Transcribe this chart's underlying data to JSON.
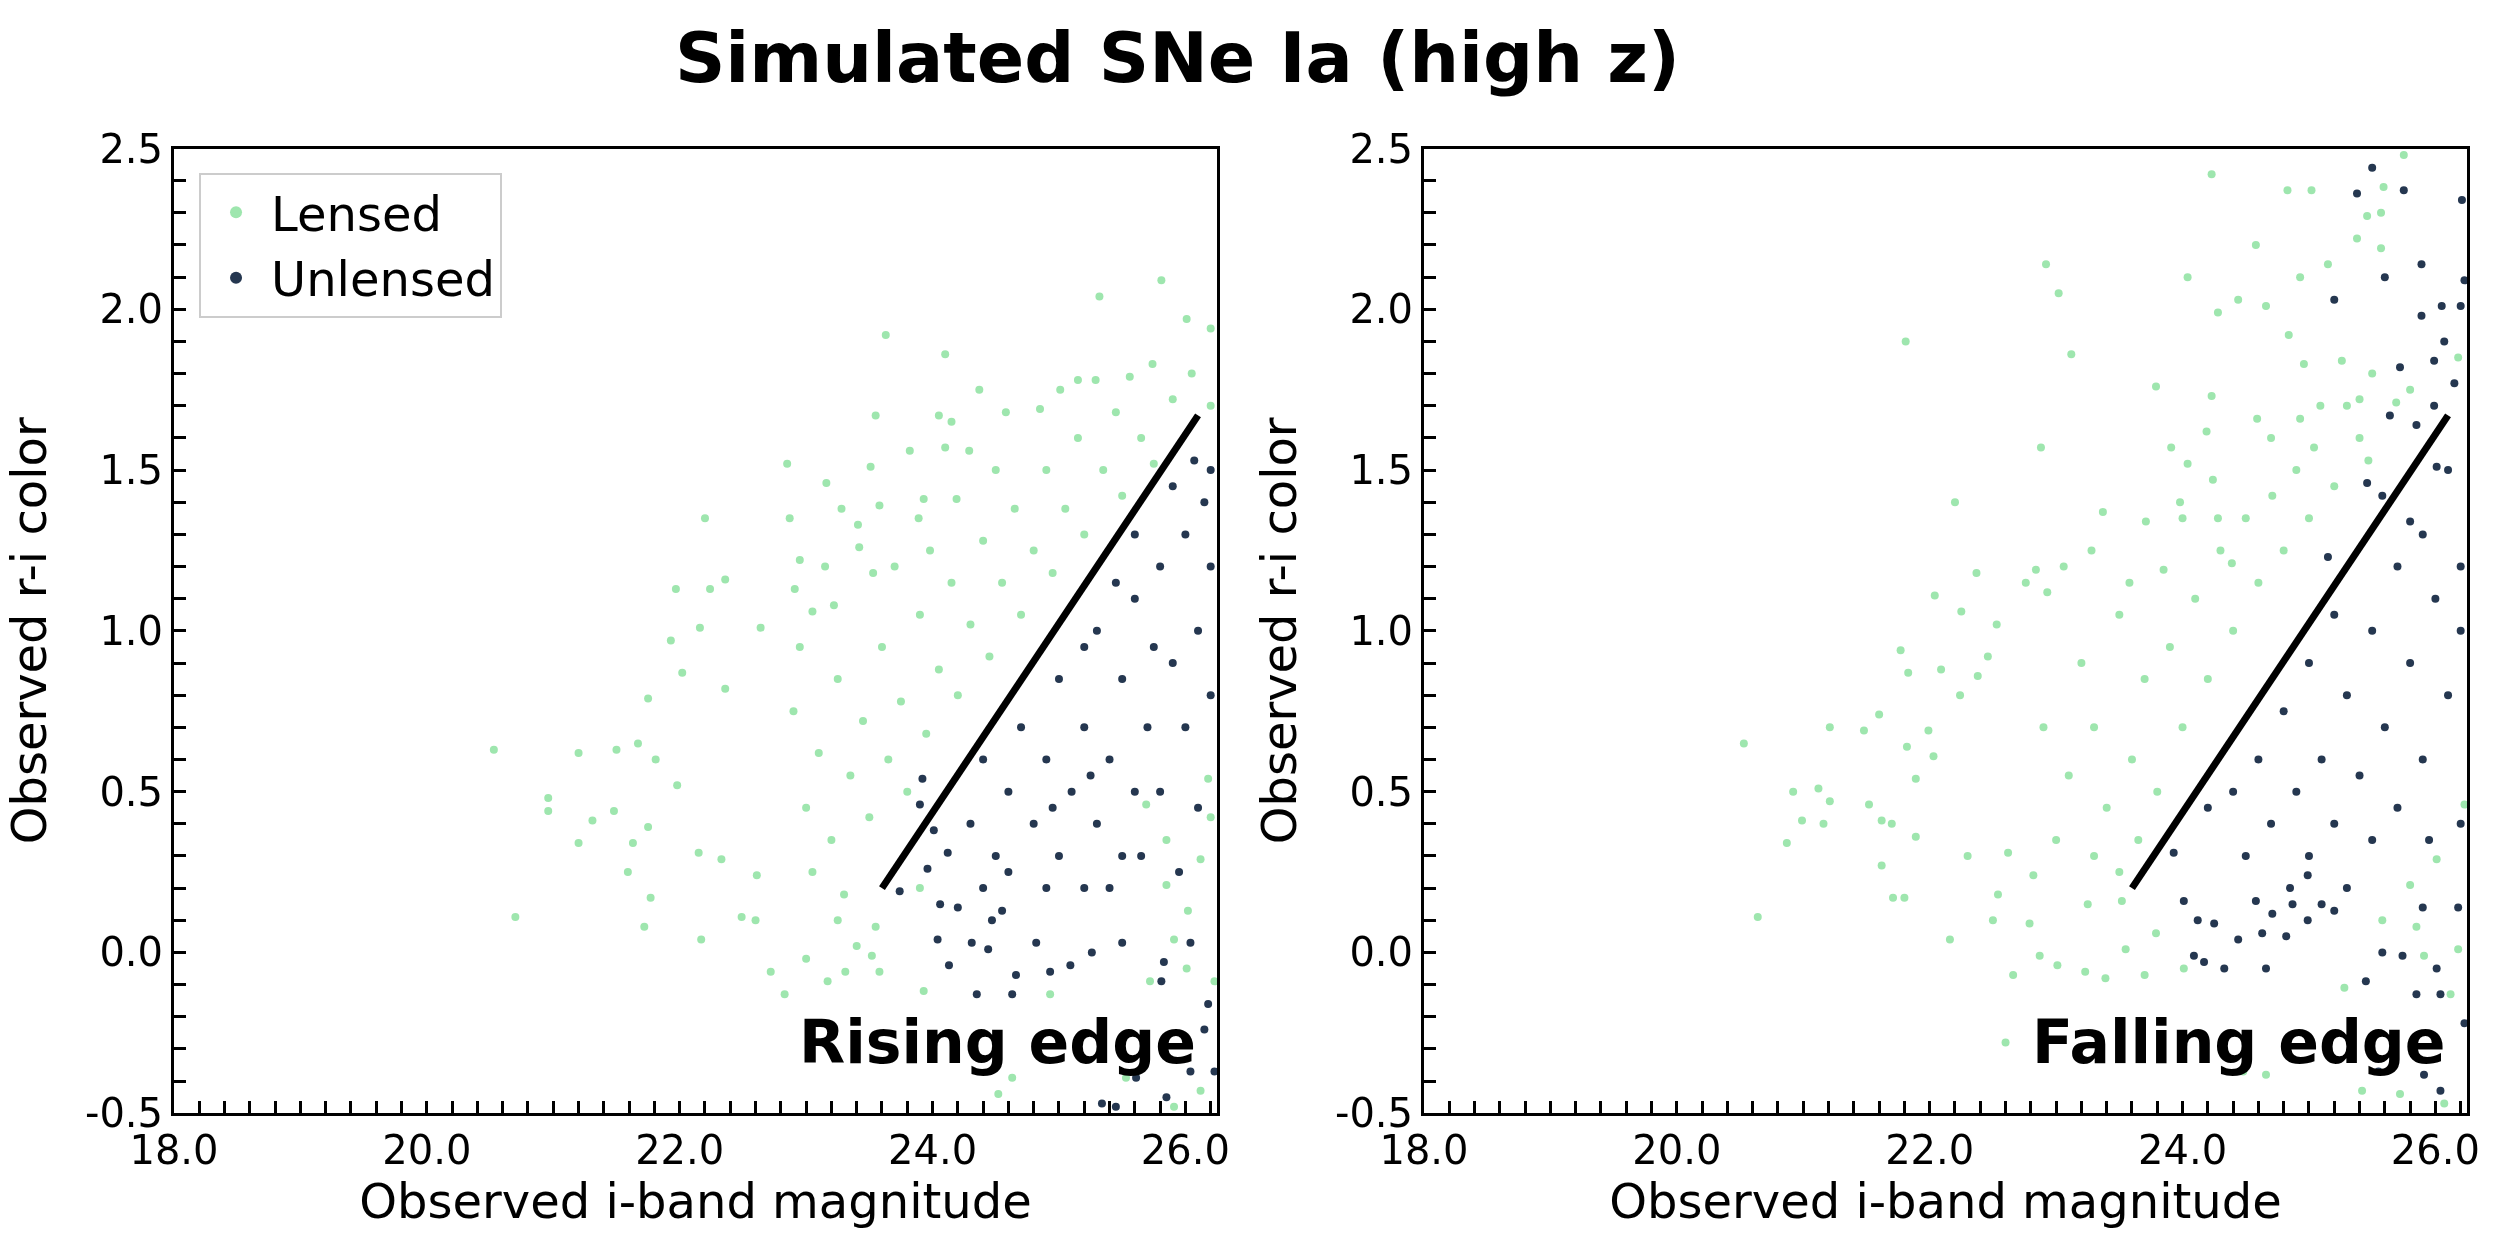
{
  "chart_data": [
    {
      "type": "scatter",
      "title": "Simulated SNe Ia (high z)",
      "xlabel": "Observed i-band magnitude",
      "ylabel": "Observed r-i color",
      "xlim": [
        18,
        26.25
      ],
      "ylim": [
        -0.5,
        2.5
      ],
      "xticks": [
        {
          "value": 18,
          "label": "18.0"
        },
        {
          "value": 20,
          "label": "20.0"
        },
        {
          "value": 22,
          "label": "22.0"
        },
        {
          "value": 24,
          "label": "24.0"
        },
        {
          "value": 26,
          "label": "26.0"
        },
        {
          "value": 18.2,
          "label": null
        },
        {
          "value": 18.4,
          "label": null
        },
        {
          "value": 18.6,
          "label": null
        },
        {
          "value": 18.8,
          "label": null
        },
        {
          "value": 19,
          "label": null
        },
        {
          "value": 19.2,
          "label": null
        },
        {
          "value": 19.4,
          "label": null
        },
        {
          "value": 19.6,
          "label": null
        },
        {
          "value": 19.8,
          "label": null
        },
        {
          "value": 20.2,
          "label": null
        },
        {
          "value": 20.4,
          "label": null
        },
        {
          "value": 20.6,
          "label": null
        },
        {
          "value": 20.8,
          "label": null
        },
        {
          "value": 21,
          "label": null
        },
        {
          "value": 21.2,
          "label": null
        },
        {
          "value": 21.4,
          "label": null
        },
        {
          "value": 21.6,
          "label": null
        },
        {
          "value": 21.8,
          "label": null
        },
        {
          "value": 22.2,
          "label": null
        },
        {
          "value": 22.4,
          "label": null
        },
        {
          "value": 22.6,
          "label": null
        },
        {
          "value": 22.8,
          "label": null
        },
        {
          "value": 23,
          "label": null
        },
        {
          "value": 23.2,
          "label": null
        },
        {
          "value": 23.4,
          "label": null
        },
        {
          "value": 23.6,
          "label": null
        },
        {
          "value": 23.8,
          "label": null
        },
        {
          "value": 24.2,
          "label": null
        },
        {
          "value": 24.4,
          "label": null
        },
        {
          "value": 24.6,
          "label": null
        },
        {
          "value": 24.8,
          "label": null
        },
        {
          "value": 25,
          "label": null
        },
        {
          "value": 25.2,
          "label": null
        },
        {
          "value": 25.4,
          "label": null
        },
        {
          "value": 25.6,
          "label": null
        },
        {
          "value": 25.8,
          "label": null
        },
        {
          "value": 26.2,
          "label": null
        }
      ],
      "yticks": [
        -0.5,
        {
          "value": 0,
          "label": "0.0"
        },
        0.5,
        {
          "value": 1,
          "label": "1.0"
        },
        1.5,
        {
          "value": 2,
          "label": "2.0"
        },
        2.5,
        {
          "value": -0.4,
          "label": null
        },
        {
          "value": -0.3,
          "label": null
        },
        {
          "value": -0.2,
          "label": null
        },
        {
          "value": -0.1,
          "label": null
        },
        {
          "value": 0.1,
          "label": null
        },
        {
          "value": 0.2,
          "label": null
        },
        {
          "value": 0.3,
          "label": null
        },
        {
          "value": 0.4,
          "label": null
        },
        {
          "value": 0.6,
          "label": null
        },
        {
          "value": 0.7,
          "label": null
        },
        {
          "value": 0.8,
          "label": null
        },
        {
          "value": 0.9,
          "label": null
        },
        {
          "value": 1.1,
          "label": null
        },
        {
          "value": 1.2,
          "label": null
        },
        {
          "value": 1.3,
          "label": null
        },
        {
          "value": 1.4,
          "label": null
        },
        {
          "value": 1.6,
          "label": null
        },
        {
          "value": 1.7,
          "label": null
        },
        {
          "value": 1.8,
          "label": null
        },
        {
          "value": 1.9,
          "label": null
        },
        {
          "value": 2.1,
          "label": null
        },
        {
          "value": 2.2,
          "label": null
        },
        {
          "value": 2.3,
          "label": null
        },
        {
          "value": 2.4,
          "label": null
        }
      ],
      "grid": false,
      "legend": "top left",
      "annotations": [
        "Rising edge"
      ],
      "series": [
        {
          "name": "Lensed",
          "color": "#9ee6ae",
          "marker": "circle",
          "x": [
            20.53,
            20.7,
            20.96,
            20.96,
            21.2,
            21.2,
            21.31,
            21.48,
            21.5,
            21.67,
            21.63,
            21.59,
            21.77,
            21.72,
            21.75,
            21.75,
            21.81,
            21.93,
            22.02,
            22.16,
            22.17,
            22.36,
            21.98,
            22.15,
            22.33,
            22.49,
            22.6,
            22.83,
            22.72,
            22.61,
            25.81,
            25.32,
            23.63,
            24.1,
            24.37,
            23.55,
            24.05,
            24.15,
            23.82,
            24.29,
            24.1,
            24.58,
            24.85,
            25.01,
            25.15,
            25.29,
            25.56,
            25.74,
            26.01,
            26.2,
            22.85,
            23.16,
            23.51,
            24.19,
            23.93,
            22.2,
            22.87,
            23.28,
            23.41,
            23.58,
            23.89,
            22.95,
            23.42,
            23.98,
            22.36,
            22.24,
            21.97,
            22.91,
            23.53,
            23.05,
            23.22,
            22.64,
            22.9,
            23.0,
            23.1,
            23.2,
            23.25,
            23.35,
            23.45,
            23.5,
            23.6,
            23.65,
            23.75,
            23.8,
            23.9,
            23.95,
            24.05,
            24.15,
            24.2,
            24.3,
            24.4,
            24.45,
            24.55,
            24.65,
            24.7,
            24.8,
            24.9,
            24.95,
            25.05,
            25.15,
            25.2,
            25.35,
            25.45,
            25.5,
            25.65,
            25.75,
            25.9,
            26.05,
            26.2,
            23.05,
            23.3,
            23.55,
            23.4,
            23.9,
            22.95,
            23.15,
            23.7,
            24.5,
            23.0,
            23.25,
            25.85,
            26.02,
            26.12,
            26.2,
            25.91,
            26.23,
            26.01,
            25.72,
            26.18,
            25.69,
            25.85,
            24.52,
            24.63,
            24.93,
            23.93,
            23.58,
            23.52,
            23.17,
            23.31,
            25.53,
            26.12,
            25.91
          ],
          "values": [
            0.63,
            0.11,
            0.48,
            0.44,
            0.62,
            0.34,
            0.41,
            0.44,
            0.63,
            0.65,
            0.34,
            0.25,
            0.17,
            0.08,
            0.39,
            0.79,
            0.6,
            0.97,
            0.87,
            1.01,
            0.04,
            0.82,
            0.52,
            0.31,
            0.29,
            0.11,
            0.1,
            -0.13,
            -0.06,
            0.24,
            2.09,
            2.04,
            1.92,
            1.86,
            1.75,
            1.67,
            1.67,
            1.65,
            1.56,
            1.56,
            1.57,
            1.68,
            1.69,
            1.75,
            1.78,
            1.78,
            1.79,
            1.83,
            1.97,
            1.94,
            1.52,
            1.46,
            1.51,
            1.41,
            1.41,
            1.35,
            1.35,
            1.38,
            1.33,
            1.39,
            1.35,
            1.22,
            1.26,
            1.25,
            1.16,
            1.13,
            1.13,
            1.13,
            1.18,
            1.06,
            1.08,
            1.01,
            0.75,
            0.45,
            0.62,
            0.35,
            0.85,
            0.55,
            0.72,
            0.42,
            0.95,
            0.6,
            0.78,
            0.5,
            1.05,
            0.68,
            0.88,
            1.15,
            0.8,
            1.02,
            1.28,
            0.92,
            1.15,
            1.38,
            1.05,
            1.25,
            1.5,
            1.18,
            1.38,
            1.6,
            1.3,
            1.5,
            1.68,
            1.42,
            1.6,
            1.52,
            1.72,
            1.8,
            1.7,
            0.25,
            0.18,
            0.08,
            0.02,
            0.2,
            0.95,
            1.2,
            1.2,
            1.5,
            -0.02,
            0.1,
            0.21,
            0.13,
            0.29,
            0.42,
            0.04,
            -0.09,
            -0.05,
            -0.09,
            0.54,
            0.46,
            0.35,
            -0.44,
            -0.39,
            -0.13,
            -0.12,
            -0.06,
            -0.01,
            -0.09,
            -0.06,
            -0.39,
            -0.43,
            -0.48
          ]
        },
        {
          "name": "Unlensed",
          "color": "#253750",
          "marker": "circle",
          "x": [
            24.3,
            24.4,
            24.5,
            24.6,
            24.7,
            24.8,
            24.9,
            25.0,
            25.0,
            25.1,
            25.2,
            25.3,
            25.3,
            25.4,
            25.5,
            25.5,
            25.6,
            25.7,
            25.8,
            25.8,
            25.9,
            26.0,
            26.1,
            26.15,
            26.0,
            25.6,
            25.9,
            24.9,
            25.2,
            24.6,
            25.45,
            25.2,
            24.95,
            25.25,
            25.6,
            25.75,
            26.2,
            26.2,
            26.2,
            24.4,
            25.4,
            25.65,
            26.1,
            25.95,
            26.07,
            23.92,
            23.9,
            24.01,
            24.12,
            23.96,
            23.74,
            24.06,
            24.2,
            24.47,
            24.55,
            24.04,
            24.13,
            24.31,
            24.44,
            24.63,
            24.35,
            24.66,
            24.93,
            25.09,
            24.82,
            25.26,
            25.5,
            26.04,
            25.81,
            26.15,
            26.18,
            25.34,
            25.45,
            25.61,
            25.85,
            26.04,
            26.23,
            25.83
          ],
          "values": [
            0.4,
            0.6,
            0.3,
            0.5,
            0.7,
            0.4,
            0.6,
            0.3,
            0.85,
            0.5,
            0.7,
            0.4,
            1.0,
            0.6,
            0.85,
            0.3,
            1.1,
            0.7,
            1.2,
            0.5,
            0.9,
            1.3,
            1.0,
            1.4,
            0.7,
            1.3,
            1.45,
            0.2,
            0.2,
            0.25,
            1.15,
            0.95,
            0.45,
            0.55,
            0.5,
            0.95,
            0.8,
            1.2,
            1.5,
            0.2,
            0.2,
            0.3,
            0.45,
            0.25,
            1.53,
            0.54,
            0.46,
            0.38,
            0.31,
            0.26,
            0.19,
            0.15,
            0.14,
            0.1,
            0.13,
            0.04,
            -0.04,
            0.03,
            0.01,
            -0.13,
            -0.13,
            -0.07,
            -0.06,
            -0.04,
            0.03,
            0.0,
            0.03,
            0.03,
            -0.09,
            -0.24,
            -0.16,
            -0.47,
            -0.48,
            -0.39,
            -0.45,
            -0.37,
            -0.37,
            -0.03
          ]
        },
        {
          "type": "line",
          "color": "#000000",
          "x": [
            23.6,
            26.1
          ],
          "values": [
            0.2,
            1.67
          ]
        }
      ]
    },
    {
      "type": "scatter",
      "xlabel": "Observed i-band magnitude",
      "ylabel": "Observed r-i color",
      "xlim": [
        18,
        26.25
      ],
      "ylim": [
        -0.5,
        2.5
      ],
      "xticks": [
        {
          "value": 18,
          "label": "18.0"
        },
        {
          "value": 20,
          "label": "20.0"
        },
        {
          "value": 22,
          "label": "22.0"
        },
        {
          "value": 24,
          "label": "24.0"
        },
        {
          "value": 26,
          "label": "26.0"
        },
        {
          "value": 18.2,
          "label": null
        },
        {
          "value": 18.4,
          "label": null
        },
        {
          "value": 18.6,
          "label": null
        },
        {
          "value": 18.8,
          "label": null
        },
        {
          "value": 19,
          "label": null
        },
        {
          "value": 19.2,
          "label": null
        },
        {
          "value": 19.4,
          "label": null
        },
        {
          "value": 19.6,
          "label": null
        },
        {
          "value": 19.8,
          "label": null
        },
        {
          "value": 20.2,
          "label": null
        },
        {
          "value": 20.4,
          "label": null
        },
        {
          "value": 20.6,
          "label": null
        },
        {
          "value": 20.8,
          "label": null
        },
        {
          "value": 21,
          "label": null
        },
        {
          "value": 21.2,
          "label": null
        },
        {
          "value": 21.4,
          "label": null
        },
        {
          "value": 21.6,
          "label": null
        },
        {
          "value": 21.8,
          "label": null
        },
        {
          "value": 22.2,
          "label": null
        },
        {
          "value": 22.4,
          "label": null
        },
        {
          "value": 22.6,
          "label": null
        },
        {
          "value": 22.8,
          "label": null
        },
        {
          "value": 23,
          "label": null
        },
        {
          "value": 23.2,
          "label": null
        },
        {
          "value": 23.4,
          "label": null
        },
        {
          "value": 23.6,
          "label": null
        },
        {
          "value": 23.8,
          "label": null
        },
        {
          "value": 24.2,
          "label": null
        },
        {
          "value": 24.4,
          "label": null
        },
        {
          "value": 24.6,
          "label": null
        },
        {
          "value": 24.8,
          "label": null
        },
        {
          "value": 25,
          "label": null
        },
        {
          "value": 25.2,
          "label": null
        },
        {
          "value": 25.4,
          "label": null
        },
        {
          "value": 25.6,
          "label": null
        },
        {
          "value": 25.8,
          "label": null
        },
        {
          "value": 26.2,
          "label": null
        }
      ],
      "yticks": [
        -0.5,
        {
          "value": 0,
          "label": "0.0"
        },
        0.5,
        {
          "value": 1,
          "label": "1.0"
        },
        1.5,
        {
          "value": 2,
          "label": "2.0"
        },
        2.5,
        {
          "value": -0.4,
          "label": null
        },
        {
          "value": -0.3,
          "label": null
        },
        {
          "value": -0.2,
          "label": null
        },
        {
          "value": -0.1,
          "label": null
        },
        {
          "value": 0.1,
          "label": null
        },
        {
          "value": 0.2,
          "label": null
        },
        {
          "value": 0.3,
          "label": null
        },
        {
          "value": 0.4,
          "label": null
        },
        {
          "value": 0.6,
          "label": null
        },
        {
          "value": 0.7,
          "label": null
        },
        {
          "value": 0.8,
          "label": null
        },
        {
          "value": 0.9,
          "label": null
        },
        {
          "value": 1.1,
          "label": null
        },
        {
          "value": 1.2,
          "label": null
        },
        {
          "value": 1.3,
          "label": null
        },
        {
          "value": 1.4,
          "label": null
        },
        {
          "value": 1.6,
          "label": null
        },
        {
          "value": 1.7,
          "label": null
        },
        {
          "value": 1.8,
          "label": null
        },
        {
          "value": 1.9,
          "label": null
        },
        {
          "value": 2.1,
          "label": null
        },
        {
          "value": 2.2,
          "label": null
        },
        {
          "value": 2.3,
          "label": null
        },
        {
          "value": 2.4,
          "label": null
        }
      ],
      "grid": false,
      "annotations": [
        "Falling edge"
      ],
      "series": [
        {
          "color": "#9ee6ae",
          "marker": "circle",
          "x": [
            25.75,
            24.23,
            24.83,
            25.02,
            25.59,
            25.57,
            25.46,
            24.58,
            25.38,
            25.15,
            25.57,
            22.92,
            23.02,
            21.81,
            23.12,
            24.04,
            24.44,
            24.28,
            24.66,
            24.93,
            24.84,
            23.79,
            24.23,
            24.19,
            22.88,
            23.91,
            24.04,
            24.24,
            24.59,
            24.93,
            25.09,
            25.4,
            24.96,
            25.26,
            25.69,
            26.18,
            22.2,
            23.37,
            23.71,
            23.98,
            24.28,
            23.28,
            23.06,
            22.84,
            22.37,
            22.76,
            22.04,
            22.25,
            22.53,
            22.93,
            23.58,
            23.85,
            24.39,
            24.71,
            25.04,
            25.47,
            20.53,
            20.64,
            20.87,
            20.92,
            20.99,
            21.12,
            21.16,
            21.21,
            21.21,
            21.48,
            21.52,
            21.62,
            21.7,
            21.62,
            21.71,
            21.8,
            21.6,
            21.77,
            21.83,
            21.82,
            21.89,
            21.99,
            22.03,
            21.89,
            22.09,
            22.24,
            22.38,
            22.46,
            22.16,
            22.3,
            22.5,
            22.54,
            22.62,
            22.66,
            22.6,
            22.79,
            22.87,
            22.82,
            23.01,
            23.23,
            23.39,
            23.55,
            23.7,
            23.52,
            23.79,
            24.01,
            24.48,
            24.66,
            25.28,
            25.42,
            25.72,
            26.07,
            25.91,
            26.18,
            26.12,
            26.23,
            26.01,
            25.8,
            25.58,
            25.85,
            23.1,
            23.3,
            23.4,
            23.6,
            23.7,
            23.8,
            23.9,
            24.0,
            24.1,
            24.2,
            24.3,
            24.4,
            24.5,
            24.6,
            24.7,
            24.8,
            24.9,
            25.0,
            25.2,
            25.3,
            25.4,
            25.5,
            25.8,
            23.0,
            23.3,
            23.5,
            23.2,
            23.5,
            24.0,
            22.9,
            23.25,
            23.65
          ],
          "values": [
            2.48,
            2.42,
            2.37,
            2.37,
            2.38,
            2.3,
            2.29,
            2.2,
            2.22,
            2.14,
            2.19,
            2.14,
            2.05,
            1.9,
            1.86,
            2.1,
            2.03,
            1.99,
            2.01,
            2.1,
            1.92,
            1.76,
            1.73,
            1.62,
            1.57,
            1.57,
            1.52,
            1.47,
            1.66,
            1.66,
            1.7,
            1.72,
            1.83,
            1.84,
            1.71,
            1.85,
            1.4,
            1.37,
            1.34,
            1.4,
            1.35,
            1.25,
            1.2,
            1.19,
            1.18,
            1.15,
            1.11,
            1.06,
            1.02,
            1.12,
            1.15,
            1.19,
            1.21,
            1.42,
            1.57,
            1.53,
            0.65,
            0.11,
            0.34,
            0.5,
            0.41,
            0.51,
            0.4,
            0.7,
            0.47,
            0.69,
            0.46,
            0.41,
            0.4,
            0.27,
            0.17,
            0.17,
            0.74,
            0.94,
            0.87,
            0.64,
            0.54,
            0.69,
            0.61,
            0.36,
            0.88,
            0.8,
            0.86,
            0.92,
            0.04,
            0.3,
            0.1,
            0.18,
            0.31,
            -0.07,
            -0.28,
            0.09,
            -0.01,
            0.24,
            -0.04,
            -0.06,
            -0.08,
            0.01,
            -0.07,
            0.16,
            0.06,
            -0.05,
            -0.37,
            -0.38,
            -0.11,
            -0.43,
            -0.44,
            -0.47,
            -0.01,
            0.01,
            -0.13,
            0.46,
            0.29,
            0.21,
            0.1,
            0.08,
            0.55,
            0.7,
            0.45,
            0.6,
            0.85,
            0.5,
            0.95,
            0.7,
            1.1,
            0.85,
            1.25,
            1.0,
            1.35,
            1.15,
            1.6,
            1.25,
            1.5,
            1.35,
            1.45,
            1.7,
            1.6,
            1.8,
            1.75,
            0.35,
            0.3,
            0.25,
            0.9,
            1.05,
            1.35,
            0.7,
            0.15,
            0.35
          ]
        },
        {
          "color": "#253750",
          "marker": "circle",
          "x": [
            25.5,
            25.38,
            25.75,
            26.21,
            25.89,
            25.6,
            25.2,
            26.05,
            26.2,
            25.89,
            26.23,
            26.07,
            26.15,
            25.72,
            25.99,
            25.99,
            25.64,
            25.85,
            25.46,
            25.15,
            25.58,
            25.8,
            26.01,
            24.4,
            24.5,
            24.6,
            24.7,
            24.8,
            24.9,
            25.0,
            25.0,
            25.1,
            25.2,
            25.3,
            25.3,
            25.4,
            25.5,
            25.5,
            25.6,
            25.7,
            25.7,
            25.8,
            25.9,
            25.9,
            26.0,
            26.1,
            26.1,
            26.2,
            25.2,
            24.2,
            24.85,
            26.2,
            26.2,
            25.95,
            25.1,
            24.01,
            24.09,
            24.17,
            24.33,
            24.44,
            24.66,
            24.63,
            24.82,
            24.99,
            25.2,
            25.45,
            25.58,
            25.74,
            25.9,
            26.01,
            26.04,
            25.55,
            25.91,
            26.23,
            26.04,
            25.85,
            26.18,
            23.93,
            24.12,
            24.25,
            24.58,
            24.71,
            24.87,
            24.99
          ],
          "values": [
            2.44,
            2.36,
            2.37,
            2.34,
            2.14,
            2.1,
            2.03,
            2.01,
            2.01,
            1.98,
            2.09,
            1.9,
            1.77,
            1.82,
            1.84,
            1.7,
            1.67,
            1.64,
            1.46,
            1.23,
            1.42,
            1.34,
            1.51,
            0.5,
            0.3,
            0.6,
            0.4,
            0.75,
            0.5,
            0.3,
            0.9,
            0.6,
            0.4,
            0.8,
            0.2,
            0.55,
            1.0,
            0.35,
            0.7,
            1.2,
            0.45,
            0.9,
            1.3,
            0.6,
            1.1,
            1.5,
            0.8,
            1.2,
            1.05,
            0.45,
            0.2,
            0.4,
            1.0,
            0.35,
            0.15,
            0.16,
            -0.01,
            -0.03,
            -0.05,
            0.04,
            -0.05,
            0.06,
            0.05,
            0.1,
            0.13,
            -0.09,
            0.0,
            -0.01,
            0.14,
            -0.05,
            -0.13,
            -0.37,
            -0.38,
            -0.22,
            -0.43,
            -0.13,
            0.14,
            0.31,
            0.1,
            0.09,
            0.16,
            0.12,
            0.15,
            0.24
          ]
        },
        {
          "type": "line",
          "color": "#000000",
          "x": [
            23.6,
            26.1
          ],
          "values": [
            0.2,
            1.67
          ]
        }
      ]
    }
  ]
}
